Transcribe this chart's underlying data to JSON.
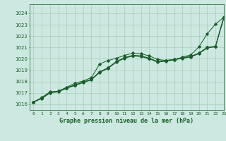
{
  "title": "Graphe pression niveau de la mer (hPa)",
  "bg_color": "#cce8e0",
  "grid_color": "#aaccbb",
  "line_color": "#1a5c2a",
  "xlim": [
    -0.5,
    23
  ],
  "ylim": [
    1015.5,
    1024.8
  ],
  "yticks": [
    1016,
    1017,
    1018,
    1019,
    1020,
    1021,
    1022,
    1023,
    1024
  ],
  "xticks": [
    0,
    1,
    2,
    3,
    4,
    5,
    6,
    7,
    8,
    9,
    10,
    11,
    12,
    13,
    14,
    15,
    16,
    17,
    18,
    19,
    20,
    21,
    22,
    23
  ],
  "series": [
    [
      1016.2,
      1016.6,
      1017.1,
      1017.15,
      1017.5,
      1017.85,
      1018.05,
      1018.35,
      1019.55,
      1019.85,
      1020.05,
      1020.3,
      1020.5,
      1020.45,
      1020.25,
      1019.95,
      1019.85,
      1019.9,
      1020.15,
      1020.35,
      1021.05,
      1022.2,
      1023.05,
      1023.65
    ],
    [
      1016.2,
      1016.55,
      1017.05,
      1017.15,
      1017.45,
      1017.7,
      1017.95,
      1018.2,
      1018.85,
      1019.2,
      1019.75,
      1020.1,
      1020.3,
      1020.25,
      1020.05,
      1019.75,
      1019.85,
      1019.95,
      1020.1,
      1020.2,
      1020.5,
      1021.0,
      1021.1,
      1023.6
    ],
    [
      1016.2,
      1016.55,
      1017.05,
      1017.15,
      1017.45,
      1017.7,
      1017.95,
      1018.2,
      1018.85,
      1019.2,
      1019.75,
      1020.1,
      1020.3,
      1020.25,
      1020.05,
      1019.75,
      1019.85,
      1019.95,
      1020.1,
      1020.2,
      1020.5,
      1021.0,
      1021.1,
      1023.7
    ],
    [
      1016.2,
      1016.5,
      1017.0,
      1017.1,
      1017.4,
      1017.65,
      1017.9,
      1018.15,
      1018.8,
      1019.15,
      1019.7,
      1020.05,
      1020.25,
      1020.2,
      1020.0,
      1019.7,
      1019.8,
      1019.9,
      1020.05,
      1020.15,
      1020.45,
      1020.95,
      1021.05,
      1023.55
    ]
  ]
}
